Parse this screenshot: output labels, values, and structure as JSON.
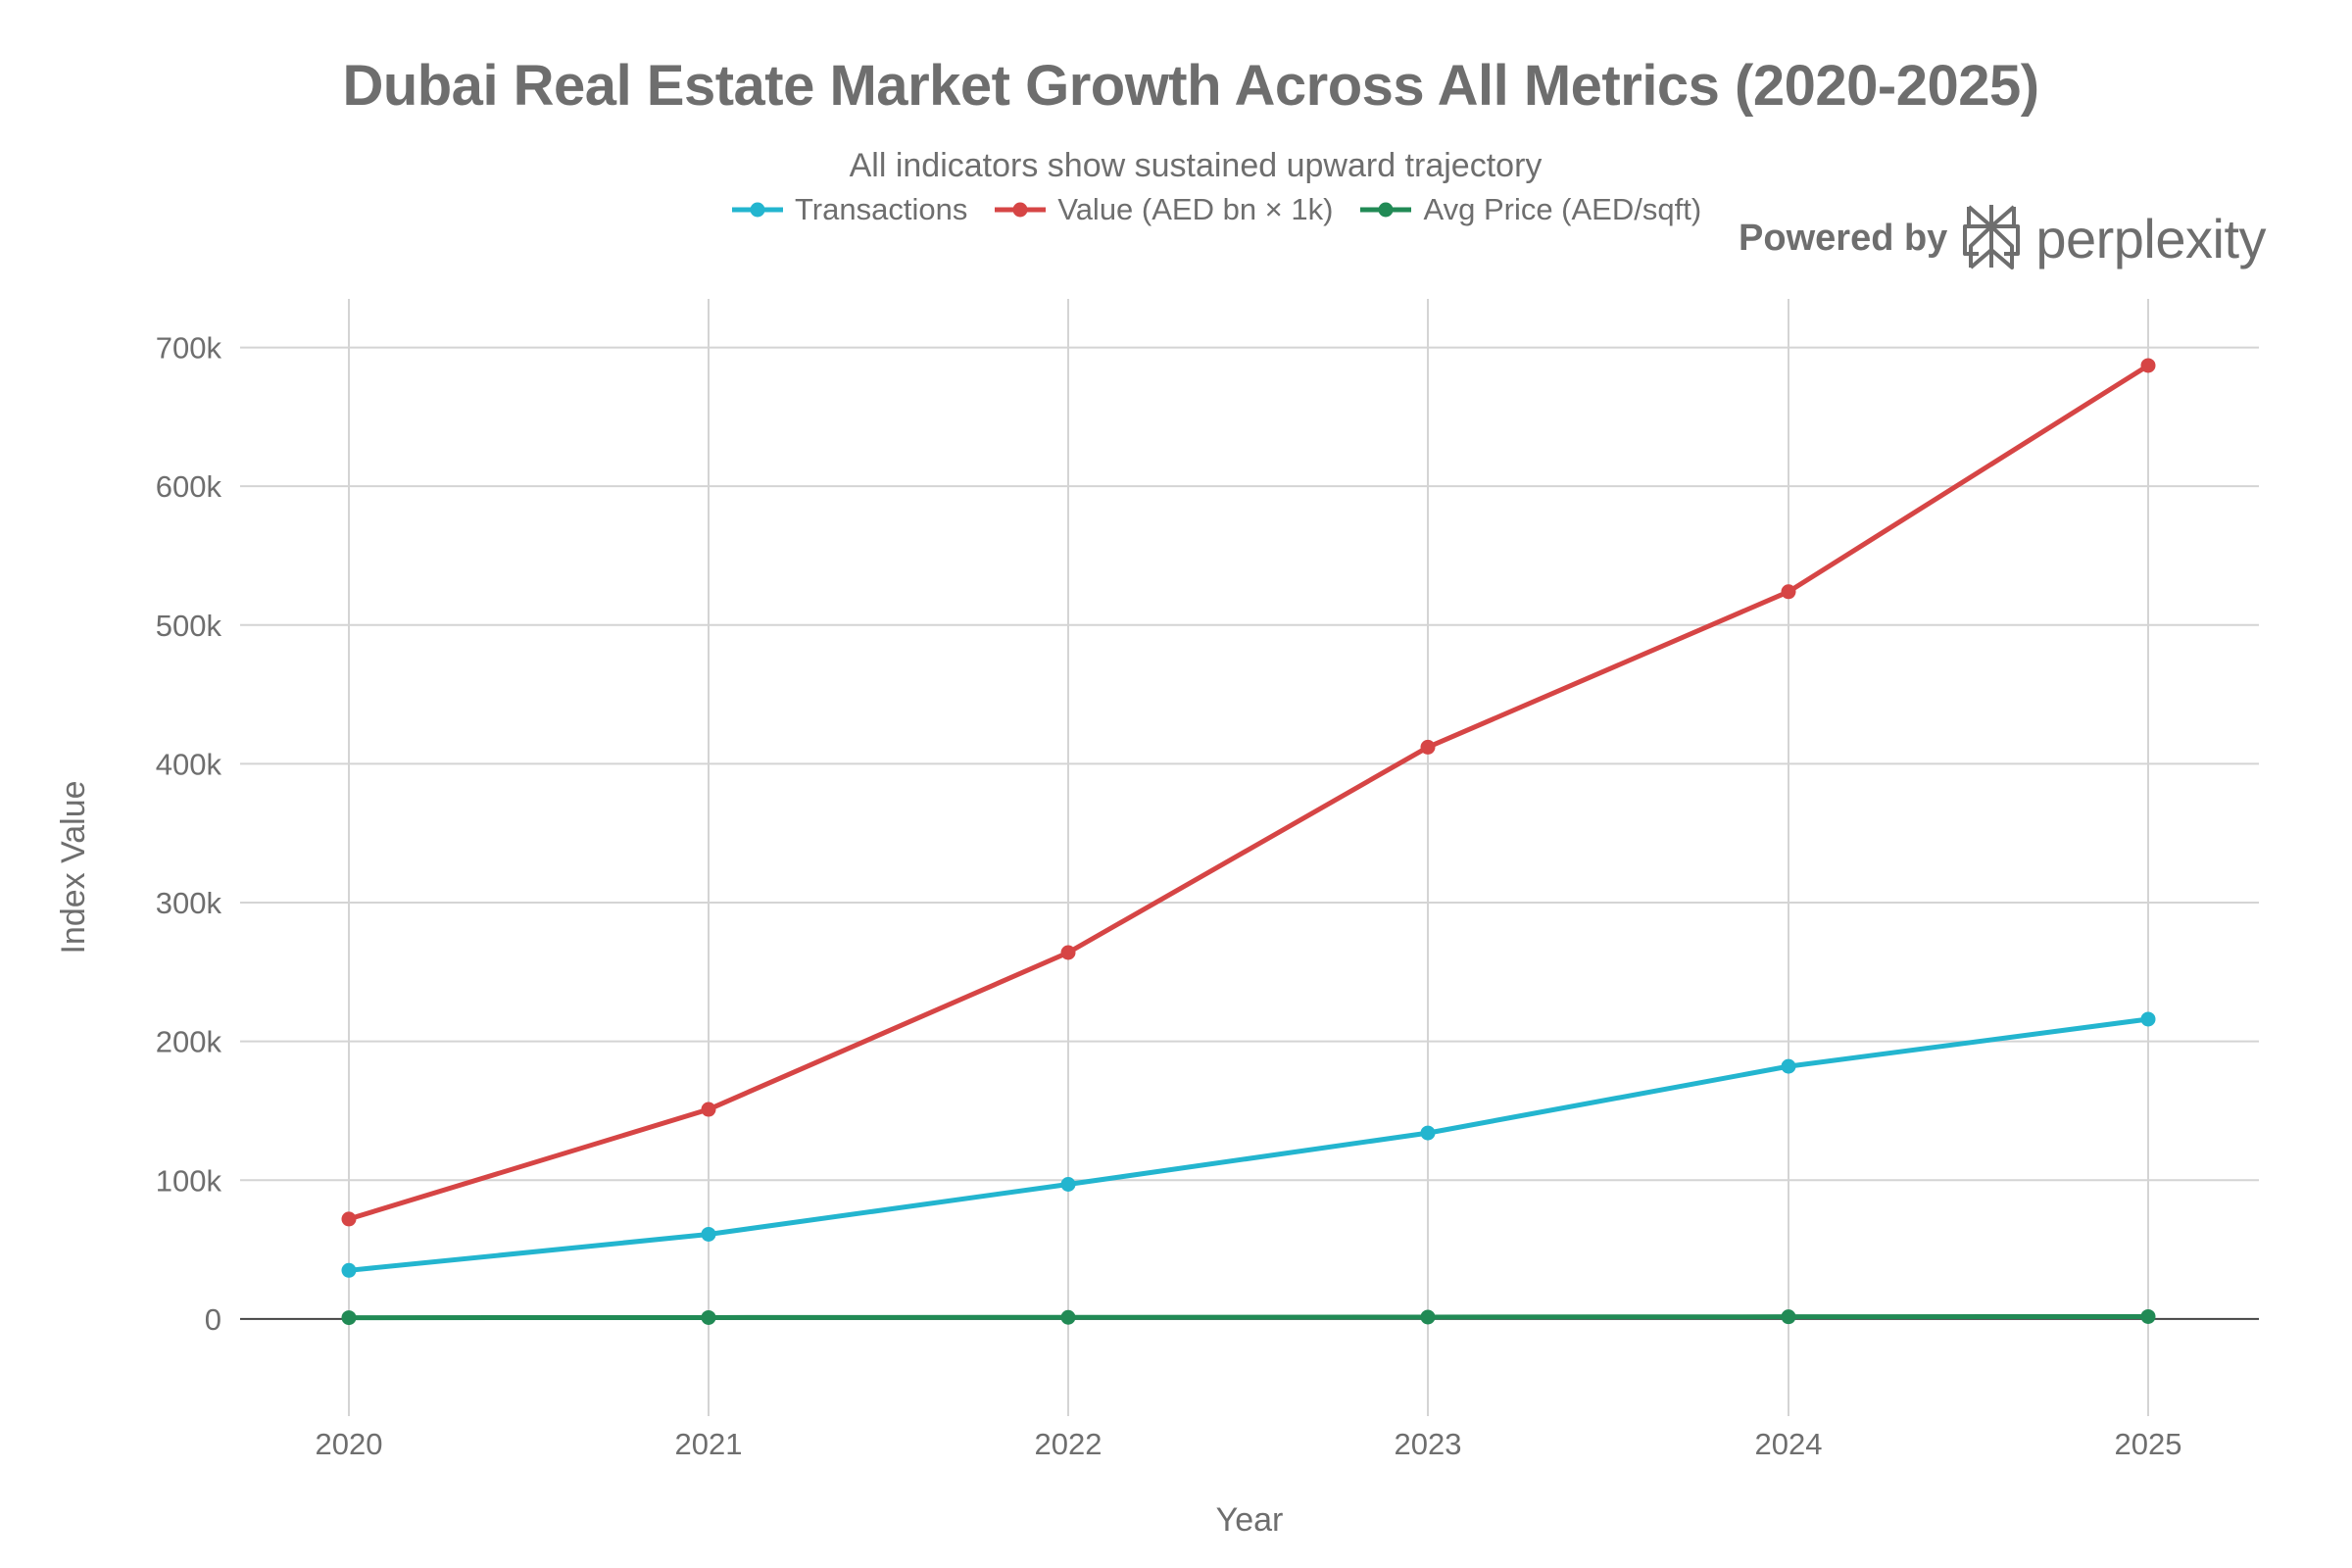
{
  "chart_data": {
    "type": "line",
    "title": "Dubai Real Estate Market Growth Across All Metrics (2020-2025)",
    "subtitle": "All indicators show sustained upward trajectory",
    "xlabel": "Year",
    "ylabel": "Index Value",
    "categories": [
      "2020",
      "2021",
      "2022",
      "2023",
      "2024",
      "2025"
    ],
    "ylim": [
      -70000,
      735000
    ],
    "yticks": [
      0,
      100000,
      200000,
      300000,
      400000,
      500000,
      600000,
      700000
    ],
    "ytick_labels": [
      "0",
      "100k",
      "200k",
      "300k",
      "400k",
      "500k",
      "600k",
      "700k"
    ],
    "grid": true,
    "legend_position": "top",
    "series": [
      {
        "name": "Transactions",
        "color": "#23b5cf",
        "values": [
          35000,
          61000,
          97000,
          134000,
          182000,
          216000
        ]
      },
      {
        "name": "Value (AED bn × 1k)",
        "color": "#d64545",
        "values": [
          72000,
          151000,
          264000,
          412000,
          524000,
          687000
        ]
      },
      {
        "name": "Avg Price (AED/sqft)",
        "color": "#218a55",
        "values": [
          900,
          1000,
          1150,
          1350,
          1550,
          1700
        ]
      }
    ]
  },
  "brand": {
    "powered_by": "Powered by",
    "name": "perplexity",
    "logo_icon": "perplexity-logo-icon"
  }
}
